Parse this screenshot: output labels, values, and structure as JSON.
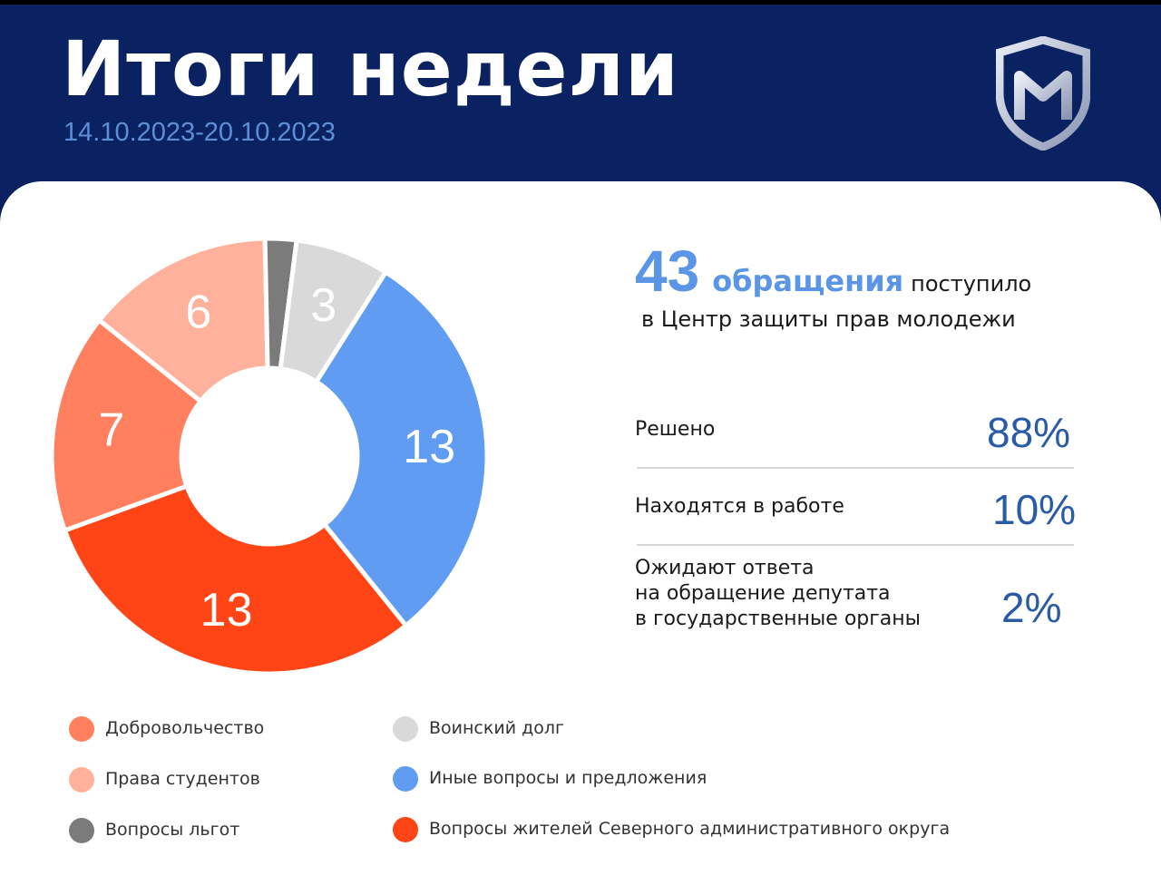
{
  "header": {
    "title": "Итоги недели",
    "date_range": "14.10.2023-20.10.2023"
  },
  "summary": {
    "total": "43",
    "word": "обращения",
    "rest": "поступило",
    "subline": "в Центр защиты прав молодежи"
  },
  "stats": [
    {
      "label": "Решено",
      "value": "88%"
    },
    {
      "label": "Находятся в работе",
      "value": "10%"
    },
    {
      "label": "Ожидают ответа\nна обращение депутата\nв государственные органы",
      "value": "2%"
    }
  ],
  "chart_data": {
    "type": "pie",
    "donut": true,
    "slices": [
      {
        "label": "Добровольчество",
        "value": 7,
        "color": "#ff7f5e"
      },
      {
        "label": "Права студентов",
        "value": 6,
        "color": "#ffb19b"
      },
      {
        "label": "Вопросы льгот",
        "value": 1,
        "color": "#7b7b7b"
      },
      {
        "label": "Воинский долг",
        "value": 3,
        "color": "#d9d9d9"
      },
      {
        "label": "Иные вопросы и предложения",
        "value": 13,
        "color": "#5f9cf2"
      },
      {
        "label": "Вопросы жителей Северного административного округа",
        "value": 13,
        "color": "#ff4415"
      }
    ],
    "legend": "bottom"
  },
  "colors": {
    "header_bg": "#0a2262",
    "accent_blue": "#5a95e6",
    "value_blue": "#2a5ba6"
  }
}
